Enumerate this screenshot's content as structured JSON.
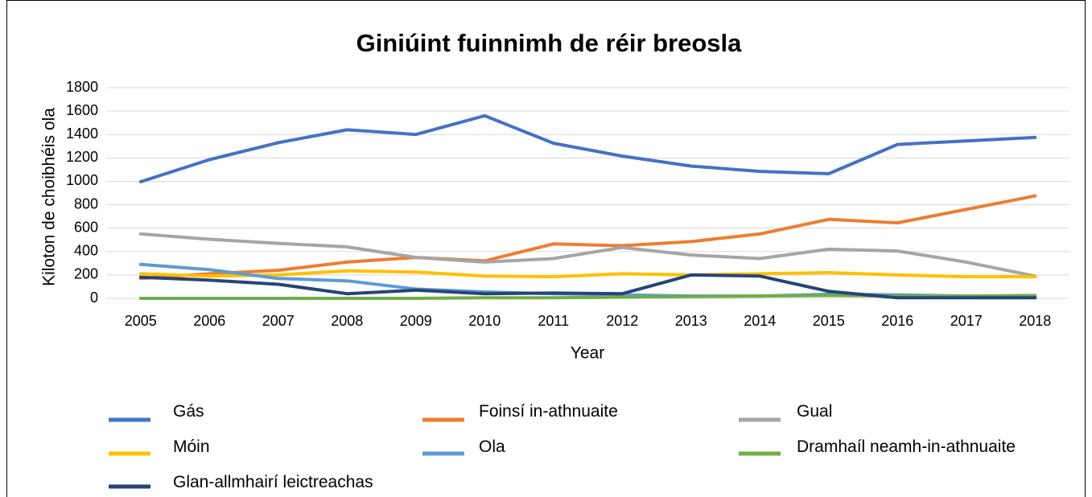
{
  "chart_data": {
    "type": "line",
    "title": "Giniúint fuinnimh de réir breosla",
    "x_label": "Year",
    "y_label": "Kiloton de choibhéis ola",
    "categories": [
      "2005",
      "2006",
      "2007",
      "2008",
      "2009",
      "2010",
      "2011",
      "2012",
      "2013",
      "2014",
      "2015",
      "2016",
      "2017",
      "2018"
    ],
    "ylim": [
      0,
      1800
    ],
    "yticks": [
      0,
      200,
      400,
      600,
      800,
      1000,
      1200,
      1400,
      1600,
      1800
    ],
    "grid": true,
    "legend": "bottom",
    "series": [
      {
        "name": "Gás",
        "color": "#4472c4",
        "values": [
          996,
          1185,
          1330,
          1440,
          1400,
          1560,
          1325,
          1215,
          1130,
          1085,
          1065,
          1315,
          1345,
          1375
        ]
      },
      {
        "name": "Foinsí in-athnuaite",
        "color": "#ed7d31",
        "values": [
          170,
          210,
          240,
          310,
          350,
          320,
          465,
          450,
          485,
          550,
          675,
          645,
          760,
          875
        ]
      },
      {
        "name": "Gual",
        "color": "#a5a5a5",
        "values": [
          550,
          505,
          470,
          440,
          350,
          310,
          340,
          435,
          370,
          340,
          420,
          405,
          310,
          190
        ]
      },
      {
        "name": "Móin",
        "color": "#ffc000",
        "values": [
          210,
          190,
          200,
          235,
          225,
          190,
          185,
          210,
          200,
          210,
          220,
          200,
          185,
          185
        ]
      },
      {
        "name": "Ola",
        "color": "#5b9bd5",
        "values": [
          290,
          245,
          170,
          150,
          80,
          55,
          40,
          30,
          20,
          20,
          35,
          30,
          20,
          20
        ]
      },
      {
        "name": "Dramhaíl neamh-in-athnuaite",
        "color": "#70ad47",
        "values": [
          0,
          0,
          0,
          0,
          0,
          5,
          5,
          10,
          15,
          20,
          25,
          20,
          20,
          25
        ]
      },
      {
        "name": "Glan-allmhairí leictreachas",
        "color": "#264478",
        "values": [
          180,
          155,
          120,
          40,
          70,
          40,
          45,
          40,
          200,
          190,
          60,
          5,
          5,
          5
        ]
      }
    ]
  }
}
